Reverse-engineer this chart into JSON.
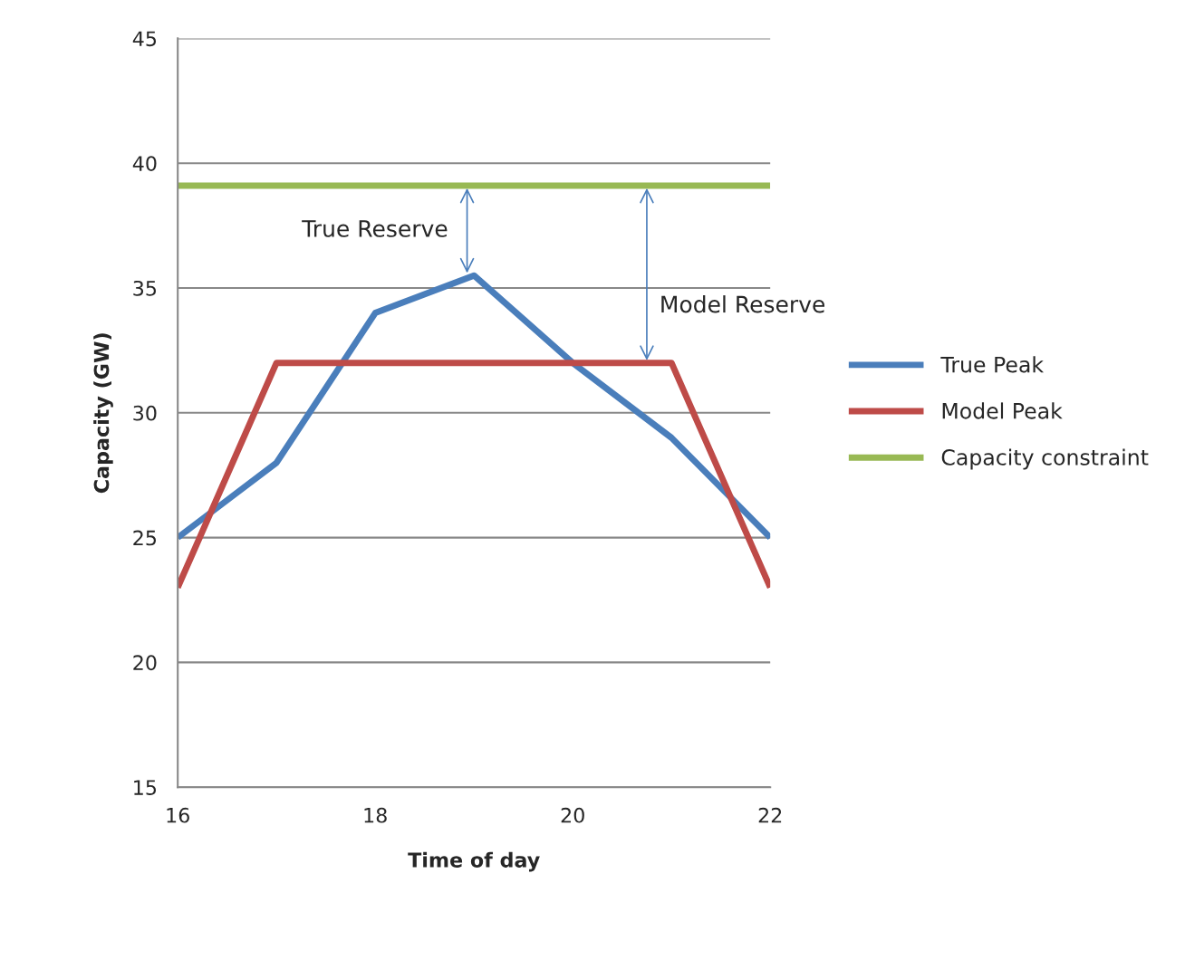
{
  "chart_data": {
    "type": "line",
    "xlabel": "Time of day",
    "ylabel": "Capacity (GW)",
    "x": [
      16,
      17,
      18,
      19,
      20,
      21,
      22
    ],
    "series": [
      {
        "name": "True Peak",
        "color": "#4a7ebb",
        "values": [
          25,
          28,
          34,
          35.5,
          32,
          29,
          25
        ]
      },
      {
        "name": "Model Peak",
        "color": "#be4b48",
        "values": [
          23,
          32,
          null,
          null,
          null,
          32,
          23
        ]
      },
      {
        "name": "Capacity constraint",
        "color": "#98b954",
        "x": [
          16,
          22
        ],
        "values": [
          39.1,
          39.1
        ]
      }
    ],
    "annotations": [
      {
        "text": "True Reserve",
        "x": 18.93,
        "y": 35.5
      },
      {
        "text": "Model Reserve",
        "x": 20.75,
        "y": 32
      }
    ],
    "xlim": [
      16,
      22
    ],
    "xticks": [
      16,
      18,
      20,
      22
    ],
    "ylim": [
      15,
      45
    ],
    "yticks": [
      15,
      20,
      25,
      30,
      35,
      40,
      45
    ],
    "grid": "y",
    "legend": "right",
    "marker": "none",
    "line_style": "solid"
  }
}
